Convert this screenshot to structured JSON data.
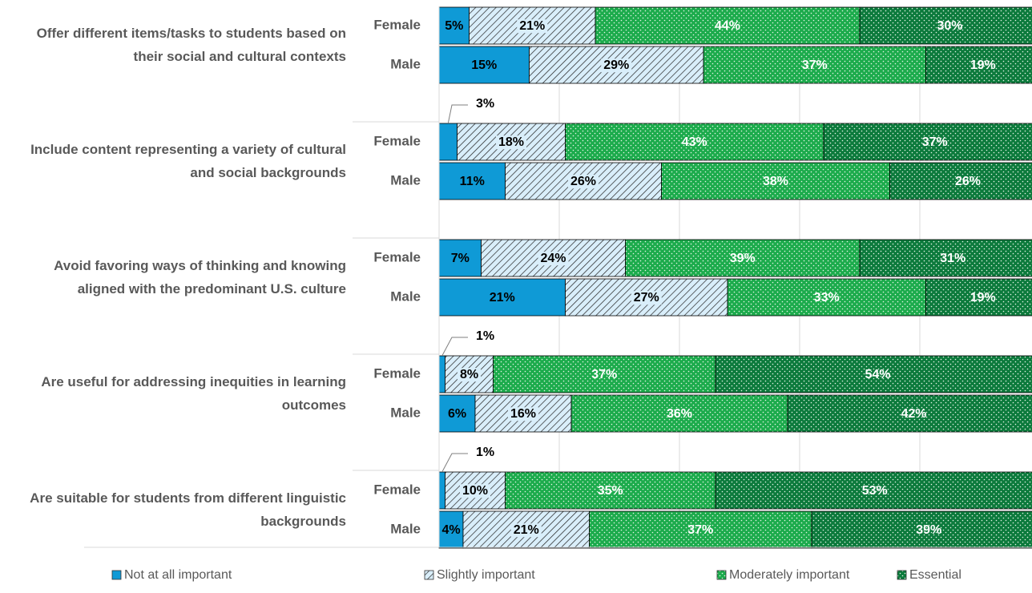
{
  "chart_data": {
    "type": "stacked_barh",
    "groups": [
      "Offer different items/tasks to students based on their social and cultural contexts",
      "Include content representing a variety of cultural and social backgrounds",
      "Avoid favoring ways of thinking and knowing aligned with the predominant U.S. culture",
      "Are useful for addressing inequities in learning outcomes",
      "Are suitable for students from different linguistic backgrounds"
    ],
    "categories": [
      "Female",
      "Male",
      "Female",
      "Male",
      "Female",
      "Male",
      "Female",
      "Male",
      "Female",
      "Male"
    ],
    "series": [
      {
        "name": "Not at all important",
        "color": "#0f9ad6",
        "pattern": "solid",
        "label_color": "#000000",
        "values": [
          5,
          15,
          3,
          11,
          7,
          21,
          1,
          6,
          1,
          4
        ],
        "value_labels": [
          "5%",
          "15%",
          "3%",
          "11%",
          "7%",
          "21%",
          "1%",
          "6%",
          "1%",
          "4%"
        ]
      },
      {
        "name": "Slightly important",
        "color": "#d9eefa",
        "pattern": "hatch",
        "label_color": "#000000",
        "values": [
          21,
          29,
          18,
          26,
          24,
          27,
          8,
          16,
          10,
          21
        ],
        "value_labels": [
          "21%",
          "29%",
          "18%",
          "26%",
          "24%",
          "27%",
          "8%",
          "16%",
          "10%",
          "21%"
        ]
      },
      {
        "name": "Moderately important",
        "color": "#1cab4c",
        "pattern": "dots",
        "label_color": "#ffffff",
        "values": [
          44,
          37,
          43,
          38,
          39,
          33,
          37,
          36,
          35,
          37
        ],
        "value_labels": [
          "44%",
          "37%",
          "43%",
          "38%",
          "39%",
          "33%",
          "37%",
          "36%",
          "35%",
          "37%"
        ]
      },
      {
        "name": "Essential",
        "color": "#0c7a3c",
        "pattern": "dots",
        "label_color": "#ffffff",
        "values": [
          30,
          19,
          37,
          26,
          31,
          19,
          54,
          42,
          53,
          39
        ],
        "value_labels": [
          "30%",
          "19%",
          "37%",
          "26%",
          "31%",
          "19%",
          "54%",
          "42%",
          "53%",
          "39%"
        ]
      }
    ],
    "xlim": [
      0,
      100
    ],
    "xticks": [
      0,
      20,
      40,
      60,
      80,
      100
    ],
    "grid": true,
    "legend": "bottom"
  }
}
